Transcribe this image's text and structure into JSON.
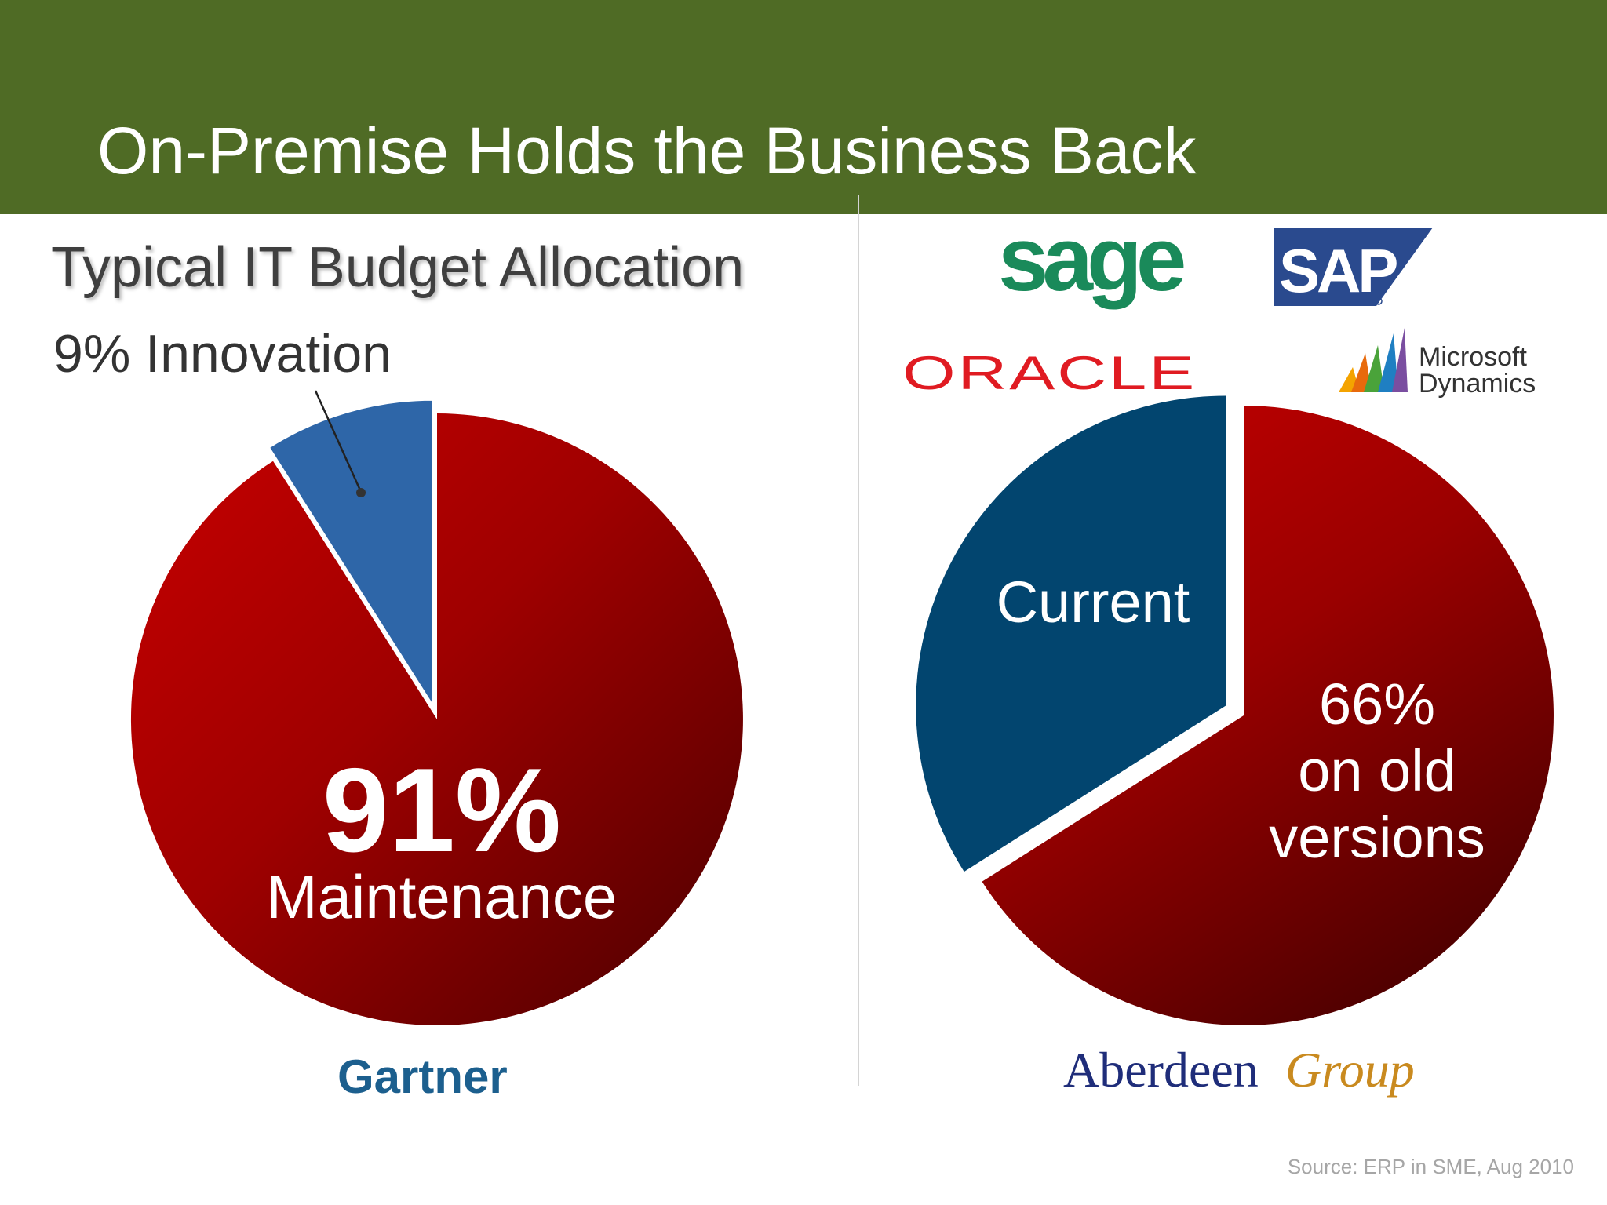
{
  "header": {
    "title": "On-Premise Holds the Business Back"
  },
  "colors": {
    "header_bg": "#4f6b25",
    "maintenance_red": "#b50000",
    "innovation_blue": "#2e66a8",
    "current_blue": "#02456f",
    "old_versions_red": "#b50000"
  },
  "chart_data": [
    {
      "type": "pie",
      "title": "Typical IT Budget Allocation",
      "slices": [
        {
          "label": "Innovation",
          "value": 9,
          "value_label": "9%",
          "color": "#2e66a8",
          "exploded": true
        },
        {
          "label": "Maintenance",
          "value": 91,
          "value_label": "91%",
          "color": "#b50000",
          "exploded": false
        }
      ],
      "logo": "Gartner"
    },
    {
      "type": "pie",
      "title": "",
      "slices": [
        {
          "label": "Current",
          "value": 34,
          "color": "#02456f",
          "exploded": true
        },
        {
          "label": "on old versions",
          "value": 66,
          "value_label": "66%",
          "color": "#b50000",
          "exploded": false
        }
      ],
      "logos": [
        "sage",
        "SAP",
        "ORACLE",
        "Microsoft Dynamics",
        "Aberdeen Group"
      ]
    }
  ],
  "labels": {
    "innovation": "9% Innovation",
    "maintenance_pct": "91%",
    "maintenance": "Maintenance",
    "current": "Current",
    "old_pct": "66%",
    "old_line1": "on old",
    "old_line2": "versions"
  },
  "logos": {
    "gartner": "Gartner",
    "sage": "sage",
    "sap": "SAP",
    "oracle": "ORACLE",
    "microsoft_1": "Microsoft",
    "microsoft_2": "Dynamics",
    "aberdeen_1": "Aberdeen",
    "aberdeen_2": "Group"
  },
  "source": "Source: ERP in SME, Aug 2010"
}
